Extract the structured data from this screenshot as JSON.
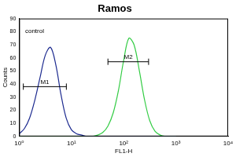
{
  "chart_data": {
    "type": "line",
    "title": "Ramos",
    "x_label": "FL1-H",
    "y_label": "Counts",
    "log": "x",
    "grid": false,
    "x": [
      1,
      1.26,
      1.58,
      2,
      2.51,
      3.16,
      3.98,
      5.01,
      6.31,
      7.94,
      10,
      12.6,
      15.8,
      20,
      25.1,
      31.6,
      39.8,
      50.1,
      63.1,
      79.4,
      100,
      126,
      158,
      200,
      251,
      316,
      398,
      501,
      631,
      794,
      1000
    ],
    "series": [
      {
        "color": "#1c2a8f",
        "values": [
          2,
          6,
          14,
          28,
          45,
          62,
          68,
          55,
          32,
          14,
          5,
          2,
          1,
          0,
          0,
          0,
          0,
          0,
          0,
          0,
          0,
          0,
          0,
          0,
          0,
          0,
          0,
          0,
          0,
          0,
          0
        ]
      },
      {
        "color": "#33cc44",
        "values": [
          0,
          0,
          0,
          0,
          0,
          0,
          0,
          0,
          0,
          0,
          0,
          0,
          0,
          0,
          0,
          1,
          3,
          8,
          18,
          35,
          58,
          75,
          70,
          50,
          28,
          12,
          4,
          1,
          0,
          0,
          0
        ]
      }
    ],
    "xlim": [
      1,
      10000
    ],
    "xticks": [
      {
        "value": 1,
        "label": "10⁰"
      },
      {
        "value": 10,
        "label": "10¹"
      },
      {
        "value": 100,
        "label": "10²"
      },
      {
        "value": 1000,
        "label": "10³"
      },
      {
        "value": 10000,
        "label": "10⁴"
      }
    ],
    "ylim": [
      0,
      90
    ],
    "yticks": [
      0,
      10,
      20,
      30,
      40,
      50,
      60,
      70,
      80,
      90
    ],
    "gates": [
      {
        "label": "M1",
        "range": [
          1.2,
          8
        ],
        "y": 38
      },
      {
        "label": "M2",
        "range": [
          50,
          300
        ],
        "y": 57
      }
    ],
    "annotations": [
      {
        "text": "control",
        "x": 1.3,
        "y": 80
      }
    ]
  }
}
